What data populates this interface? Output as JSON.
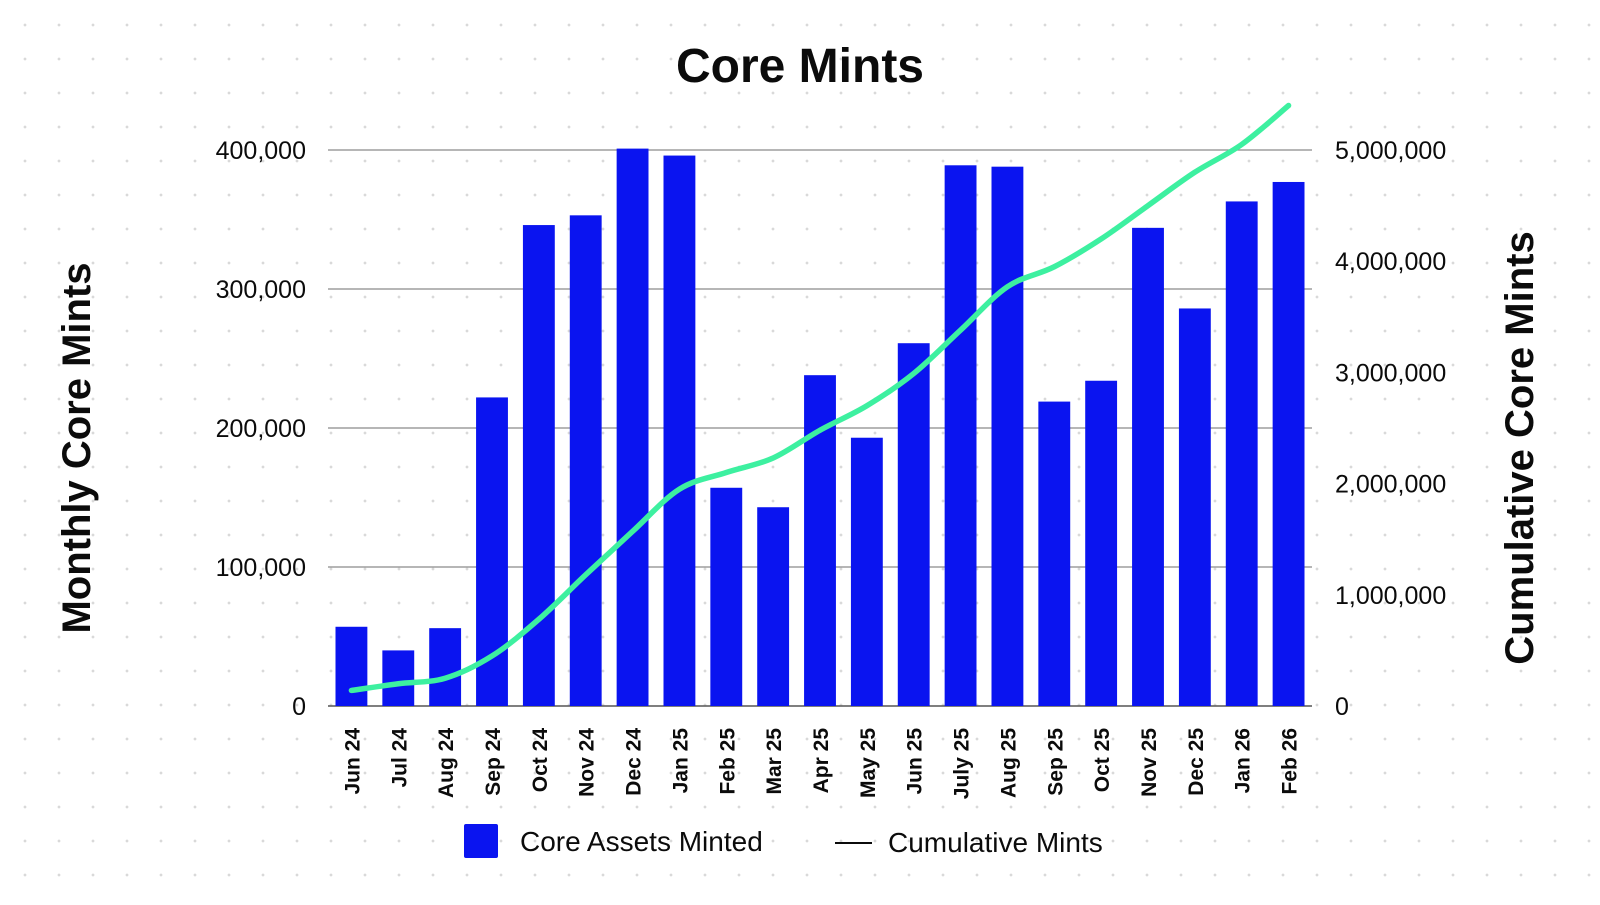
{
  "chart_data": {
    "type": "bar",
    "title": "Core Mints",
    "categories": [
      "Jun 24",
      "Jul 24",
      "Aug 24",
      "Sep 24",
      "Oct 24",
      "Nov 24",
      "Dec 24",
      "Jan 25",
      "Feb 25",
      "Mar 25",
      "Apr 25",
      "May 25",
      "Jun 25",
      "July 25",
      "Aug 25",
      "Sep 25",
      "Oct 25",
      "Nov 25",
      "Dec 25",
      "Jan 26",
      "Feb 26"
    ],
    "series": [
      {
        "name": "Core Assets Minted",
        "type": "bar",
        "axis": "left",
        "color": "#0a14f0",
        "values": [
          57000,
          40000,
          56000,
          222000,
          346000,
          353000,
          401000,
          396000,
          157000,
          143000,
          238000,
          193000,
          261000,
          389000,
          388000,
          219000,
          234000,
          344000,
          286000,
          363000,
          377000
        ]
      },
      {
        "name": "Cumulative Mints",
        "type": "line",
        "axis": "right",
        "color": "#3df0a0",
        "values": [
          140000,
          200000,
          250000,
          450000,
          780000,
          1180000,
          1570000,
          1950000,
          2100000,
          2230000,
          2480000,
          2700000,
          2990000,
          3380000,
          3770000,
          3950000,
          4200000,
          4500000,
          4800000,
          5050000,
          5400000
        ]
      }
    ],
    "ylabel": "Monthly Core Mints",
    "y2label": "Cumulative Core Mints",
    "ylim": [
      0,
      400000
    ],
    "y2lim": [
      0,
      5000000
    ],
    "yticks": [
      0,
      100000,
      200000,
      300000,
      400000
    ],
    "ytick_labels": [
      "0",
      "100,000",
      "200,000",
      "300,000",
      "400,000"
    ],
    "y2ticks": [
      0,
      1000000,
      2000000,
      3000000,
      4000000,
      5000000
    ],
    "y2tick_labels": [
      "0",
      "1,000,000",
      "2,000,000",
      "3,000,000",
      "4,000,000",
      "5,000,000"
    ],
    "grid": true,
    "legend_position": "bottom-center",
    "legend": [
      "Core Assets Minted",
      "Cumulative Mints"
    ]
  }
}
